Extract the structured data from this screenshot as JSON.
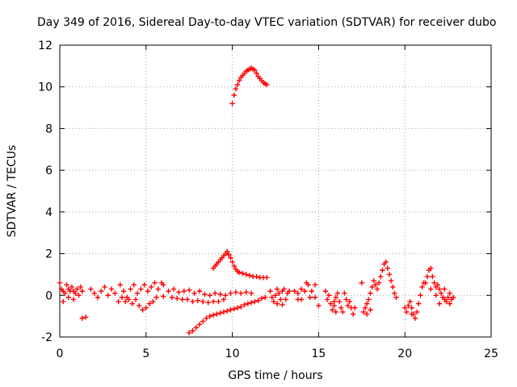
{
  "chart_data": {
    "type": "scatter",
    "title": "Day 349 of 2016, Sidereal Day-to-day VTEC variation (SDTVAR) for receiver dubo",
    "xlabel": "GPS time / hours",
    "ylabel": "SDTVAR / TECUs",
    "xlim": [
      0,
      25
    ],
    "ylim": [
      -2,
      12
    ],
    "x_ticks": [
      "0",
      "5",
      "10",
      "15",
      "20",
      "25"
    ],
    "y_ticks": [
      "-2",
      "0",
      "2",
      "4",
      "6",
      "8",
      "10",
      "12"
    ],
    "grid": true,
    "marker": "+",
    "color": "#ff0000",
    "series": [
      {
        "name": "dubo",
        "points": [
          [
            0.0,
            0.6
          ],
          [
            0.1,
            0.3
          ],
          [
            0.2,
            -0.3
          ],
          [
            0.3,
            0.1
          ],
          [
            0.4,
            0.5
          ],
          [
            0.5,
            -0.1
          ],
          [
            0.6,
            0.2
          ],
          [
            0.7,
            0.4
          ],
          [
            0.8,
            -0.2
          ],
          [
            0.9,
            0.1
          ],
          [
            1.0,
            0.3
          ],
          [
            1.1,
            0.0
          ],
          [
            1.2,
            0.4
          ],
          [
            1.3,
            0.2
          ],
          [
            0.2,
            0.2
          ],
          [
            0.5,
            0.3
          ],
          [
            0.8,
            0.2
          ],
          [
            1.3,
            -1.1
          ],
          [
            1.5,
            -1.05
          ],
          [
            1.8,
            0.3
          ],
          [
            2.0,
            0.1
          ],
          [
            2.2,
            -0.1
          ],
          [
            2.4,
            0.2
          ],
          [
            2.6,
            0.4
          ],
          [
            2.8,
            0.0
          ],
          [
            3.0,
            0.3
          ],
          [
            3.2,
            0.1
          ],
          [
            3.4,
            -0.3
          ],
          [
            3.5,
            0.5
          ],
          [
            3.7,
            0.2
          ],
          [
            3.9,
            -0.1
          ],
          [
            4.1,
            0.3
          ],
          [
            4.3,
            0.5
          ],
          [
            4.5,
            0.1
          ],
          [
            4.7,
            0.3
          ],
          [
            4.9,
            0.5
          ],
          [
            5.1,
            0.2
          ],
          [
            5.3,
            0.4
          ],
          [
            5.5,
            0.6
          ],
          [
            5.7,
            0.3
          ],
          [
            5.9,
            0.6
          ],
          [
            6.0,
            0.5
          ],
          [
            3.6,
            -0.1
          ],
          [
            3.8,
            -0.3
          ],
          [
            4.0,
            -0.2
          ],
          [
            4.2,
            -0.4
          ],
          [
            4.4,
            -0.2
          ],
          [
            4.6,
            -0.5
          ],
          [
            4.8,
            -0.7
          ],
          [
            5.0,
            -0.6
          ],
          [
            5.2,
            -0.4
          ],
          [
            5.4,
            -0.3
          ],
          [
            5.6,
            -0.1
          ],
          [
            6.0,
            -0.05
          ],
          [
            6.3,
            0.2
          ],
          [
            6.6,
            0.3
          ],
          [
            6.9,
            0.15
          ],
          [
            7.2,
            0.2
          ],
          [
            7.5,
            0.25
          ],
          [
            7.8,
            0.1
          ],
          [
            8.1,
            0.2
          ],
          [
            8.4,
            0.05
          ],
          [
            8.7,
            0.0
          ],
          [
            9.0,
            0.1
          ],
          [
            9.3,
            0.05
          ],
          [
            9.6,
            0.0
          ],
          [
            9.9,
            0.1
          ],
          [
            10.2,
            0.15
          ],
          [
            10.5,
            0.1
          ],
          [
            10.8,
            0.15
          ],
          [
            11.1,
            0.1
          ],
          [
            6.5,
            -0.1
          ],
          [
            6.8,
            -0.15
          ],
          [
            7.1,
            -0.2
          ],
          [
            7.4,
            -0.2
          ],
          [
            7.7,
            -0.3
          ],
          [
            8.0,
            -0.25
          ],
          [
            8.3,
            -0.3
          ],
          [
            8.6,
            -0.35
          ],
          [
            8.9,
            -0.3
          ],
          [
            9.2,
            -0.3
          ],
          [
            9.5,
            -0.2
          ],
          [
            7.5,
            -1.8
          ],
          [
            7.7,
            -1.7
          ],
          [
            7.9,
            -1.55
          ],
          [
            8.1,
            -1.4
          ],
          [
            8.3,
            -1.25
          ],
          [
            8.5,
            -1.1
          ],
          [
            8.7,
            -1.0
          ],
          [
            8.9,
            -0.95
          ],
          [
            9.1,
            -0.9
          ],
          [
            9.3,
            -0.85
          ],
          [
            9.5,
            -0.8
          ],
          [
            9.7,
            -0.75
          ],
          [
            9.9,
            -0.7
          ],
          [
            10.1,
            -0.65
          ],
          [
            10.3,
            -0.6
          ],
          [
            10.5,
            -0.55
          ],
          [
            10.7,
            -0.45
          ],
          [
            10.9,
            -0.4
          ],
          [
            11.1,
            -0.35
          ],
          [
            11.3,
            -0.3
          ],
          [
            11.5,
            -0.25
          ],
          [
            11.7,
            -0.15
          ],
          [
            11.9,
            -0.1
          ],
          [
            8.9,
            1.3
          ],
          [
            9.0,
            1.4
          ],
          [
            9.1,
            1.5
          ],
          [
            9.2,
            1.6
          ],
          [
            9.3,
            1.7
          ],
          [
            9.4,
            1.8
          ],
          [
            9.5,
            1.9
          ],
          [
            9.6,
            2.0
          ],
          [
            9.7,
            2.1
          ],
          [
            9.8,
            1.95
          ],
          [
            9.9,
            1.8
          ],
          [
            10.0,
            1.6
          ],
          [
            10.1,
            1.4
          ],
          [
            10.2,
            1.25
          ],
          [
            10.3,
            1.15
          ],
          [
            10.4,
            1.1
          ],
          [
            10.6,
            1.05
          ],
          [
            10.8,
            1.0
          ],
          [
            11.0,
            0.95
          ],
          [
            11.2,
            0.9
          ],
          [
            11.4,
            0.9
          ],
          [
            11.6,
            0.85
          ],
          [
            11.8,
            0.85
          ],
          [
            12.0,
            0.85
          ],
          [
            10.0,
            9.2
          ],
          [
            10.1,
            9.6
          ],
          [
            10.2,
            9.9
          ],
          [
            10.3,
            10.1
          ],
          [
            10.4,
            10.3
          ],
          [
            10.5,
            10.45
          ],
          [
            10.6,
            10.55
          ],
          [
            10.7,
            10.65
          ],
          [
            10.8,
            10.75
          ],
          [
            10.9,
            10.8
          ],
          [
            11.0,
            10.85
          ],
          [
            11.1,
            10.9
          ],
          [
            11.2,
            10.85
          ],
          [
            11.3,
            10.8
          ],
          [
            11.4,
            10.65
          ],
          [
            11.5,
            10.5
          ],
          [
            11.6,
            10.4
          ],
          [
            11.7,
            10.3
          ],
          [
            11.8,
            10.2
          ],
          [
            11.9,
            10.15
          ],
          [
            12.0,
            10.1
          ],
          [
            12.2,
            0.2
          ],
          [
            12.3,
            -0.1
          ],
          [
            12.4,
            -0.3
          ],
          [
            12.5,
            0.0
          ],
          [
            12.6,
            0.3
          ],
          [
            12.7,
            0.1
          ],
          [
            12.8,
            -0.2
          ],
          [
            12.9,
            0.2
          ],
          [
            13.0,
            0.3
          ],
          [
            13.1,
            -0.2
          ],
          [
            13.2,
            0.1
          ],
          [
            13.3,
            0.2
          ],
          [
            12.6,
            -0.4
          ],
          [
            12.9,
            -0.45
          ],
          [
            13.6,
            0.2
          ],
          [
            13.8,
            0.1
          ],
          [
            14.0,
            0.3
          ],
          [
            14.2,
            0.2
          ],
          [
            14.4,
            0.5
          ],
          [
            14.6,
            0.2
          ],
          [
            14.3,
            0.6
          ],
          [
            14.8,
            0.5
          ],
          [
            13.8,
            -0.2
          ],
          [
            14.0,
            -0.2
          ],
          [
            14.5,
            -0.1
          ],
          [
            14.8,
            -0.1
          ],
          [
            15.0,
            -0.5
          ],
          [
            15.4,
            0.2
          ],
          [
            15.5,
            -0.2
          ],
          [
            15.6,
            0.0
          ],
          [
            15.7,
            -0.4
          ],
          [
            15.8,
            -0.7
          ],
          [
            15.9,
            -0.3
          ],
          [
            16.0,
            -0.1
          ],
          [
            16.1,
            0.1
          ],
          [
            16.2,
            -0.3
          ],
          [
            16.3,
            -0.6
          ],
          [
            16.4,
            -0.8
          ],
          [
            16.5,
            0.1
          ],
          [
            16.6,
            -0.2
          ],
          [
            16.7,
            -0.5
          ],
          [
            16.8,
            -0.3
          ],
          [
            16.9,
            -0.6
          ],
          [
            17.0,
            -0.9
          ],
          [
            17.1,
            -0.6
          ],
          [
            16.0,
            -0.8
          ],
          [
            15.9,
            -0.5
          ],
          [
            17.6,
            -0.8
          ],
          [
            17.7,
            -0.6
          ],
          [
            17.8,
            -0.4
          ],
          [
            17.9,
            -0.2
          ],
          [
            18.0,
            0.1
          ],
          [
            18.1,
            0.4
          ],
          [
            18.2,
            0.7
          ],
          [
            18.3,
            0.5
          ],
          [
            18.4,
            0.3
          ],
          [
            18.5,
            0.6
          ],
          [
            18.6,
            0.9
          ],
          [
            18.7,
            1.2
          ],
          [
            18.8,
            1.5
          ],
          [
            18.9,
            1.6
          ],
          [
            19.0,
            1.3
          ],
          [
            19.1,
            1.0
          ],
          [
            19.2,
            0.7
          ],
          [
            19.3,
            0.4
          ],
          [
            19.4,
            0.1
          ],
          [
            19.5,
            -0.1
          ],
          [
            17.8,
            -0.9
          ],
          [
            18.0,
            -0.7
          ],
          [
            17.5,
            0.6
          ],
          [
            20.0,
            -0.6
          ],
          [
            20.1,
            -0.8
          ],
          [
            20.2,
            -0.5
          ],
          [
            20.3,
            -0.3
          ],
          [
            20.4,
            -0.6
          ],
          [
            20.5,
            -0.9
          ],
          [
            20.6,
            -1.1
          ],
          [
            20.7,
            -0.8
          ],
          [
            20.8,
            -0.4
          ],
          [
            20.9,
            0.0
          ],
          [
            21.0,
            0.4
          ],
          [
            21.1,
            0.6
          ],
          [
            20.4,
            -0.9
          ],
          [
            21.2,
            0.6
          ],
          [
            21.3,
            0.9
          ],
          [
            21.4,
            1.2
          ],
          [
            21.5,
            1.3
          ],
          [
            21.6,
            0.9
          ],
          [
            21.7,
            0.6
          ],
          [
            21.8,
            0.4
          ],
          [
            21.9,
            0.5
          ],
          [
            22.0,
            0.3
          ],
          [
            22.1,
            0.1
          ],
          [
            22.2,
            -0.1
          ],
          [
            22.3,
            -0.2
          ],
          [
            22.4,
            -0.3
          ],
          [
            22.5,
            -0.1
          ],
          [
            22.6,
            0.1
          ],
          [
            22.7,
            -0.2
          ],
          [
            22.8,
            -0.1
          ],
          [
            21.5,
            0.3
          ],
          [
            21.8,
            0.0
          ],
          [
            22.0,
            -0.4
          ],
          [
            22.3,
            0.3
          ],
          [
            22.6,
            -0.4
          ]
        ]
      }
    ]
  }
}
